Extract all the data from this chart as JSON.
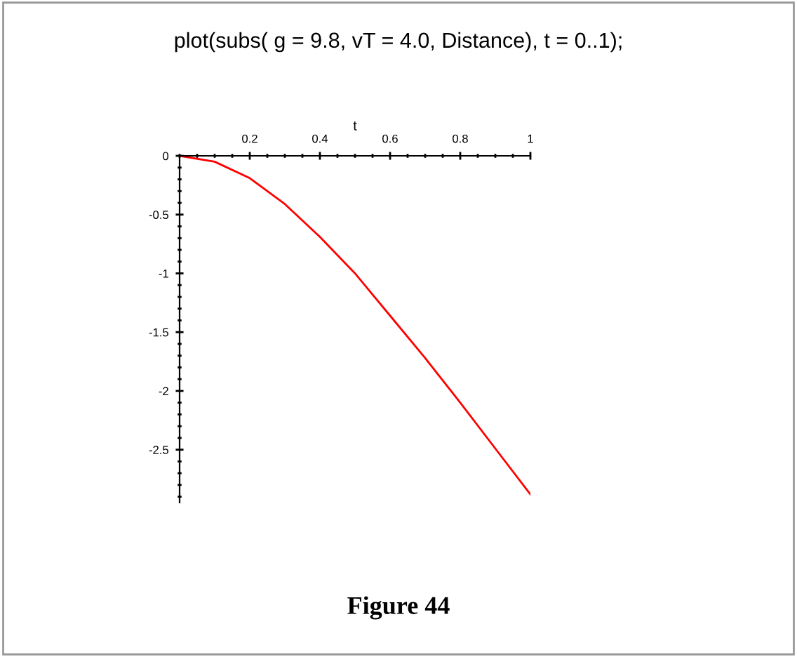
{
  "chart_data": {
    "type": "line",
    "title": "plot(subs( g = 9.8, vT = 4.0, Distance), t = 0..1);",
    "xlabel": "t",
    "x": [
      0,
      0.1,
      0.2,
      0.3,
      0.4,
      0.5,
      0.6,
      0.7,
      0.8,
      0.9,
      1.0
    ],
    "series": [
      {
        "color": "#ff0000",
        "values": [
          0,
          -0.05,
          -0.19,
          -0.41,
          -0.69,
          -1.0,
          -1.36,
          -1.72,
          -2.1,
          -2.49,
          -2.88
        ]
      }
    ],
    "xlim": [
      0,
      1
    ],
    "ylim": [
      -2.95,
      0
    ],
    "xticks": [
      0.2,
      0.4,
      0.6,
      0.8,
      1
    ],
    "yticks": [
      0,
      -0.5,
      -1,
      -1.5,
      -2,
      -2.5
    ],
    "grid": false,
    "legend": false,
    "marker": "none",
    "line_style": "solid",
    "annotations": [
      "Figure 44"
    ]
  }
}
